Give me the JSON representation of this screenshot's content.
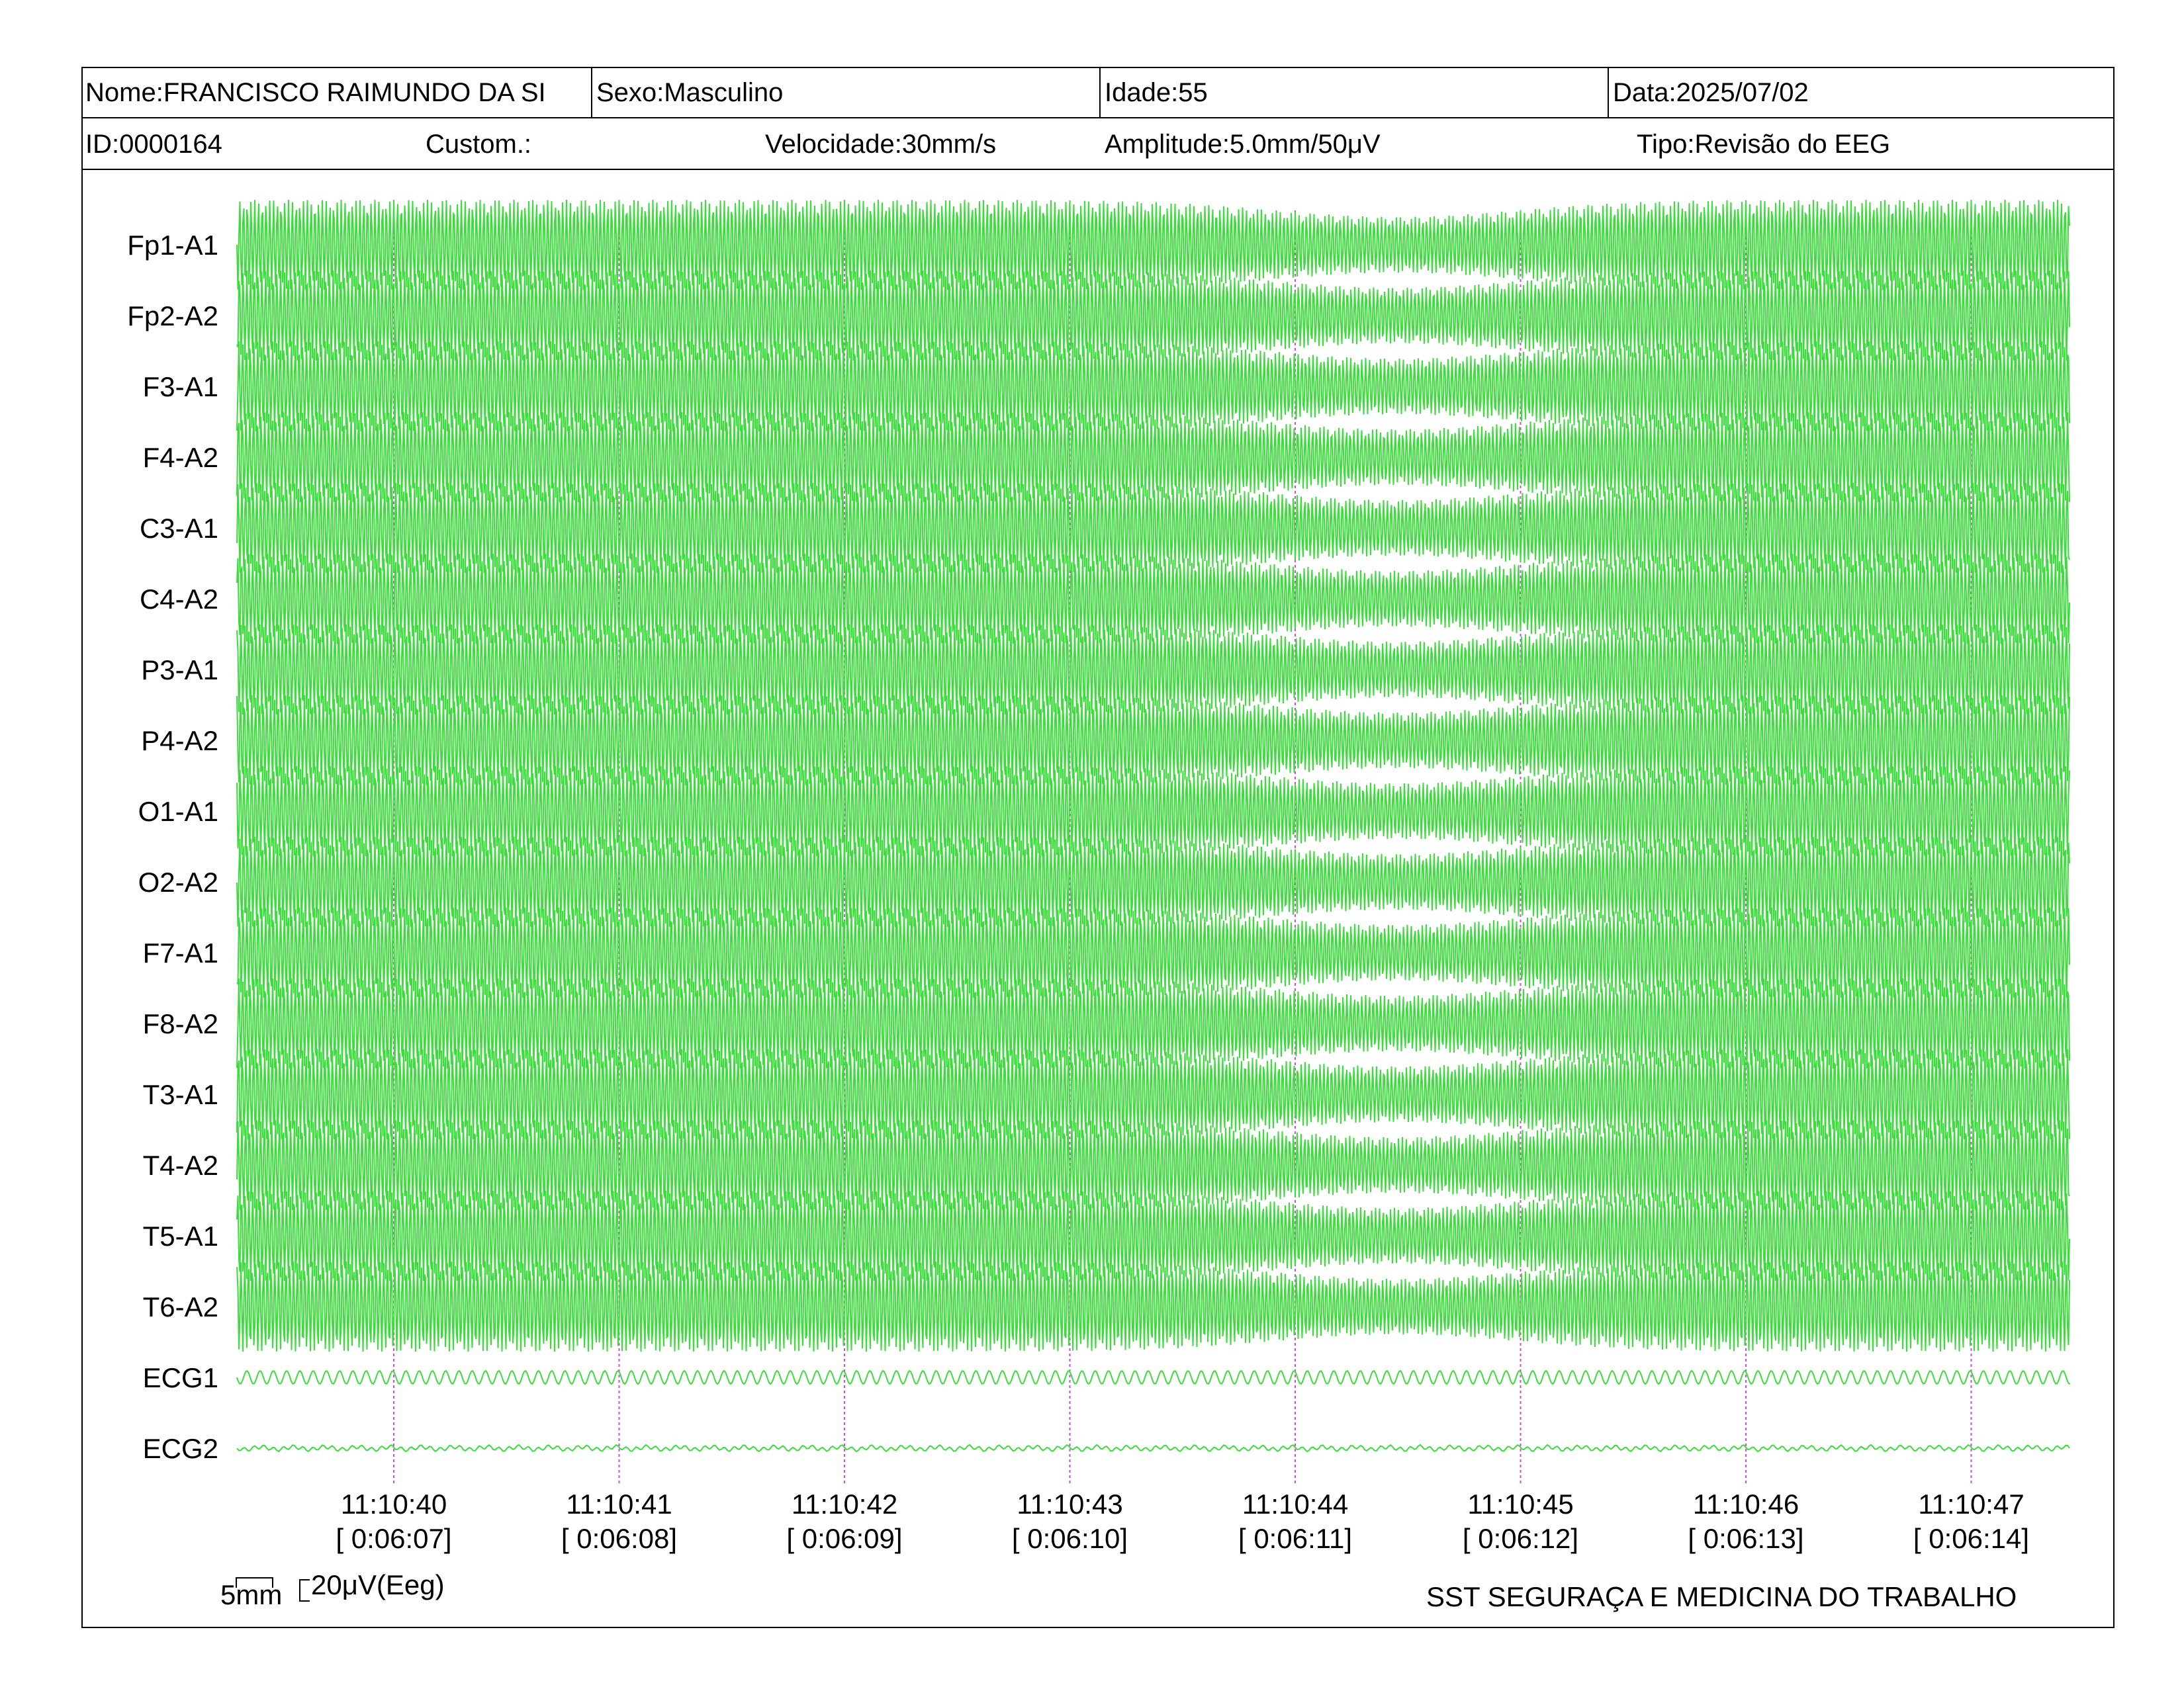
{
  "header": {
    "name": "Nome:FRANCISCO RAIMUNDO DA SI",
    "sex": "Sexo:Masculino",
    "age": "Idade:55",
    "date": "Data:2025/07/02",
    "id": "ID:0000164",
    "custom": "Custom.:",
    "speed": "Velocidade:30mm/s",
    "amplitude": "Amplitude:5.0mm/50μV",
    "type": "Tipo:Revisão do EEG"
  },
  "chart_data": {
    "type": "line",
    "title": "",
    "trace_color": "#3cdc3c",
    "marker_color": "#d44ad4",
    "channels": [
      "Fp1-A1",
      "Fp2-A2",
      "F3-A1",
      "F4-A2",
      "C3-A1",
      "C4-A2",
      "P3-A1",
      "P4-A2",
      "O1-A1",
      "O2-A2",
      "F7-A1",
      "F8-A2",
      "T3-A1",
      "T4-A2",
      "T5-A1",
      "T6-A2",
      "ECG1",
      "ECG2"
    ],
    "time_ticks": [
      {
        "clock": "11:10:40",
        "elapsed": "[ 0:06:07]"
      },
      {
        "clock": "11:10:41",
        "elapsed": "[ 0:06:08]"
      },
      {
        "clock": "11:10:42",
        "elapsed": "[ 0:06:09]"
      },
      {
        "clock": "11:10:43",
        "elapsed": "[ 0:06:10]"
      },
      {
        "clock": "11:10:44",
        "elapsed": "[ 0:06:11]"
      },
      {
        "clock": "11:10:45",
        "elapsed": "[ 0:06:12]"
      },
      {
        "clock": "11:10:46",
        "elapsed": "[ 0:06:13]"
      },
      {
        "clock": "11:10:47",
        "elapsed": "[ 0:06:14]"
      }
    ],
    "eeg_frequency_hz": 60,
    "scale_bar": {
      "time_label": "5mm",
      "amplitude_label": "20μV(Eeg)"
    }
  },
  "footer": {
    "organization": "SST SEGURAÇA E MEDICINA DO TRABALHO"
  }
}
